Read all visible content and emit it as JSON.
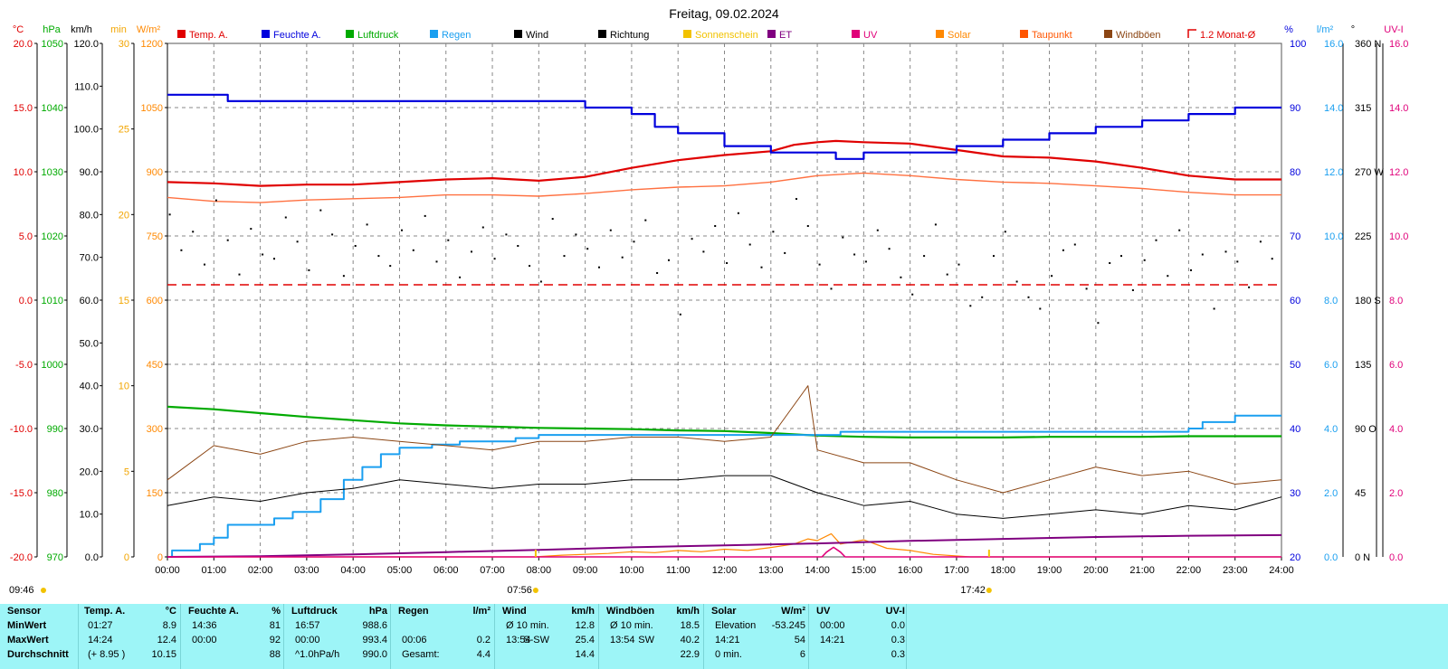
{
  "title": "Freitag, 09.02.2024",
  "legend": [
    {
      "label": "Temp. A.",
      "color": "#e00000"
    },
    {
      "label": "Feuchte A.",
      "color": "#0000dd"
    },
    {
      "label": "Luftdruck",
      "color": "#00aa00"
    },
    {
      "label": "Regen",
      "color": "#1a9ff0"
    },
    {
      "label": "Wind",
      "color": "#000000"
    },
    {
      "label": "Richtung",
      "color": "#000000"
    },
    {
      "label": "Sonnenschein",
      "color": "#f2c200"
    },
    {
      "label": "ET",
      "color": "#800080"
    },
    {
      "label": "UV",
      "color": "#e0007a"
    },
    {
      "label": "Solar",
      "color": "#ff8800"
    },
    {
      "label": "Taupunkt",
      "color": "#ff5500"
    },
    {
      "label": "Windböen",
      "color": "#8b4513"
    },
    {
      "label": "1.2 Monat-Ø",
      "color": "#e00000",
      "outline": true
    }
  ],
  "axes_left": [
    {
      "unit": "°C",
      "color": "#e00000",
      "ticks": [
        "20.0",
        "15.0",
        "10.0",
        "5.0",
        "0.0",
        "-5.0",
        "-10.0",
        "-15.0",
        "-20.0"
      ]
    },
    {
      "unit": "hPa",
      "color": "#00aa00",
      "ticks": [
        "1050",
        "1040",
        "1030",
        "1020",
        "1010",
        "1000",
        "990",
        "980",
        "970"
      ]
    },
    {
      "unit": "km/h",
      "color": "#000000",
      "ticks": [
        "120.0",
        "110.0",
        "100.0",
        "90.0",
        "80.0",
        "70.0",
        "60.0",
        "50.0",
        "40.0",
        "30.0",
        "20.0",
        "10.0",
        "0.0"
      ]
    },
    {
      "unit": "min",
      "color": "#f2a500",
      "ticks": [
        "30",
        "25",
        "20",
        "15",
        "10",
        "5",
        "0"
      ]
    },
    {
      "unit": "W/m²",
      "color": "#ff8800",
      "ticks": [
        "1200",
        "1050",
        "900",
        "750",
        "600",
        "450",
        "300",
        "150",
        "0"
      ]
    }
  ],
  "axes_right": [
    {
      "unit": "%",
      "color": "#0000dd",
      "ticks": [
        "100",
        "90",
        "80",
        "70",
        "60",
        "50",
        "40",
        "30",
        "20"
      ]
    },
    {
      "unit": "l/m²",
      "color": "#1a9ff0",
      "ticks": [
        "16.0",
        "14.0",
        "12.0",
        "10.0",
        "8.0",
        "6.0",
        "4.0",
        "2.0",
        "0.0"
      ]
    },
    {
      "unit": "°",
      "color": "#000000",
      "ticks": [
        "360 N",
        "315",
        "270 W",
        "225",
        "180 S",
        "135",
        "90 O",
        "45",
        "0 N"
      ]
    },
    {
      "unit": "UV-I",
      "color": "#e0007a",
      "ticks": [
        "16.0",
        "14.0",
        "12.0",
        "10.0",
        "8.0",
        "6.0",
        "4.0",
        "2.0",
        "0.0"
      ]
    }
  ],
  "x_ticks": [
    "00:00",
    "01:00",
    "02:00",
    "03:00",
    "04:00",
    "05:00",
    "06:00",
    "07:00",
    "08:00",
    "09:00",
    "10:00",
    "11:00",
    "12:00",
    "13:00",
    "14:00",
    "15:00",
    "16:00",
    "17:00",
    "18:00",
    "19:00",
    "20:00",
    "21:00",
    "22:00",
    "23:00",
    "24:00"
  ],
  "markers": {
    "sun_time": "09:46",
    "sunrise": "07:56",
    "sunset": "17:42"
  },
  "chart_data": {
    "type": "line",
    "x_unit": "hours",
    "xlim": [
      0,
      24
    ],
    "series": [
      {
        "name": "Temp. A.",
        "unit": "°C",
        "ylim": [
          -20,
          20
        ],
        "color": "#e00000",
        "x": [
          0,
          1,
          2,
          3,
          4,
          5,
          6,
          7,
          8,
          9,
          10,
          11,
          12,
          13,
          13.5,
          14,
          14.4,
          15,
          16,
          17,
          18,
          19,
          20,
          21,
          22,
          23,
          24
        ],
        "values": [
          9.2,
          9.1,
          8.9,
          9.0,
          9.0,
          9.2,
          9.4,
          9.5,
          9.3,
          9.6,
          10.3,
          10.9,
          11.3,
          11.6,
          12.1,
          12.3,
          12.4,
          12.3,
          12.2,
          11.7,
          11.2,
          11.1,
          10.8,
          10.3,
          9.7,
          9.4,
          9.4
        ]
      },
      {
        "name": "Feuchte A.",
        "unit": "%",
        "ylim": [
          20,
          100
        ],
        "color": "#0000dd",
        "x": [
          0,
          1.2,
          1.3,
          5.5,
          6,
          9,
          10,
          10.5,
          11,
          12,
          13,
          13.5,
          14,
          14.4,
          15,
          16,
          17,
          18,
          19,
          20,
          21,
          22,
          23,
          24
        ],
        "values": [
          92,
          92,
          91,
          91,
          91,
          90,
          89,
          87,
          86,
          84,
          83,
          83,
          83,
          82,
          83,
          83,
          84,
          85,
          86,
          87,
          88,
          89,
          90,
          90
        ]
      },
      {
        "name": "Luftdruck",
        "unit": "hPa",
        "ylim": [
          970,
          1050
        ],
        "color": "#00aa00",
        "x": [
          0,
          1,
          2,
          3,
          4,
          5,
          6,
          7,
          8,
          9,
          10,
          11,
          12,
          13,
          14,
          15,
          16,
          17,
          18,
          19,
          20,
          21,
          22,
          23,
          24
        ],
        "values": [
          993.4,
          993.0,
          992.4,
          991.8,
          991.3,
          990.8,
          990.5,
          990.3,
          990.1,
          990.0,
          989.9,
          989.7,
          989.6,
          989.3,
          988.9,
          988.7,
          988.6,
          988.6,
          988.6,
          988.7,
          988.7,
          988.7,
          988.8,
          988.8,
          988.8
        ]
      },
      {
        "name": "Regen",
        "unit": "l/m²",
        "ylim": [
          0,
          16
        ],
        "color": "#1a9ff0",
        "x": [
          0,
          0.1,
          0.7,
          1.0,
          1.3,
          2.3,
          2.7,
          3.3,
          3.8,
          4.2,
          4.6,
          5.0,
          5.3,
          5.7,
          6.3,
          7.3,
          7.5,
          8.0,
          9.0,
          10.0,
          13.0,
          14.0,
          14.5,
          15.0,
          20.0,
          21.5,
          22.0,
          22.3,
          23.0,
          24.0
        ],
        "values": [
          0,
          0.2,
          0.4,
          0.6,
          1.0,
          1.2,
          1.4,
          1.8,
          2.4,
          2.8,
          3.2,
          3.4,
          3.4,
          3.5,
          3.6,
          3.6,
          3.7,
          3.8,
          3.8,
          3.8,
          3.8,
          3.8,
          3.9,
          3.9,
          3.9,
          3.9,
          4.0,
          4.2,
          4.4,
          4.4
        ]
      },
      {
        "name": "Wind",
        "unit": "km/h",
        "ylim": [
          0,
          120
        ],
        "color": "#000000",
        "x": [
          0,
          1,
          2,
          3,
          4,
          5,
          6,
          7,
          8,
          9,
          10,
          11,
          12,
          13,
          14,
          15,
          16,
          17,
          18,
          19,
          20,
          21,
          22,
          23,
          24
        ],
        "values": [
          12,
          14,
          13,
          15,
          16,
          18,
          17,
          16,
          17,
          17,
          18,
          18,
          19,
          19,
          15,
          12,
          13,
          10,
          9,
          10,
          11,
          10,
          12,
          11,
          14
        ]
      },
      {
        "name": "Windböen",
        "unit": "km/h",
        "ylim": [
          0,
          120
        ],
        "color": "#8b4513",
        "x": [
          0,
          1,
          2,
          3,
          4,
          5,
          6,
          7,
          8,
          9,
          10,
          11,
          12,
          13,
          13.8,
          14,
          15,
          16,
          17,
          18,
          19,
          20,
          21,
          22,
          23,
          24
        ],
        "values": [
          18,
          26,
          24,
          27,
          28,
          27,
          26,
          25,
          27,
          27,
          28,
          28,
          27,
          28,
          40,
          25,
          22,
          22,
          18,
          15,
          18,
          21,
          19,
          20,
          17,
          18
        ]
      },
      {
        "name": "Taupunkt",
        "unit": "°C",
        "ylim": [
          -20,
          20
        ],
        "color": "#ff7040",
        "x": [
          0,
          1,
          2,
          3,
          4,
          5,
          6,
          7,
          8,
          9,
          10,
          11,
          12,
          13,
          14,
          15,
          16,
          17,
          18,
          19,
          20,
          21,
          22,
          23,
          24
        ],
        "values": [
          8.0,
          7.7,
          7.6,
          7.8,
          7.9,
          8.0,
          8.2,
          8.2,
          8.1,
          8.3,
          8.6,
          8.8,
          8.9,
          9.2,
          9.7,
          9.9,
          9.7,
          9.4,
          9.2,
          9.1,
          8.9,
          8.7,
          8.4,
          8.2,
          8.2
        ]
      },
      {
        "name": "Solar",
        "unit": "W/m²",
        "ylim": [
          0,
          1200
        ],
        "color": "#ff8800",
        "x": [
          0,
          7.9,
          8.5,
          9.0,
          9.5,
          10,
          10.5,
          11,
          11.5,
          12,
          12.5,
          13,
          13.5,
          13.8,
          14.0,
          14.3,
          14.5,
          15,
          15.5,
          16,
          16.5,
          17.3,
          24
        ],
        "values": [
          0,
          0,
          4,
          6,
          8,
          12,
          10,
          15,
          12,
          18,
          15,
          22,
          30,
          42,
          38,
          54,
          30,
          40,
          20,
          15,
          6,
          0,
          0
        ]
      },
      {
        "name": "ET",
        "unit": "l/m²",
        "ylim": [
          0,
          16
        ],
        "color": "#800080",
        "x": [
          0,
          2,
          4,
          6,
          8,
          10,
          12,
          14,
          16,
          18,
          20,
          22,
          24
        ],
        "values": [
          0,
          0.02,
          0.08,
          0.15,
          0.22,
          0.3,
          0.36,
          0.42,
          0.5,
          0.56,
          0.62,
          0.66,
          0.68
        ]
      },
      {
        "name": "UV",
        "unit": "UV-I",
        "ylim": [
          0,
          16
        ],
        "color": "#e0007a",
        "x": [
          0,
          14.1,
          14.2,
          14.35,
          14.5,
          14.6,
          24
        ],
        "values": [
          0,
          0,
          0.15,
          0.3,
          0.15,
          0,
          0
        ]
      },
      {
        "name": "1.2 Monat-Ø",
        "unit": "°C",
        "ylim": [
          -20,
          20
        ],
        "color": "#e00000",
        "x": [
          0,
          24
        ],
        "values": [
          1.2,
          1.2
        ]
      }
    ],
    "direction_points": {
      "name": "Richtung",
      "unit": "°",
      "ylim": [
        0,
        360
      ],
      "x": [
        0.05,
        0.3,
        0.55,
        0.8,
        1.05,
        1.3,
        1.55,
        1.8,
        2.05,
        2.3,
        2.55,
        2.8,
        3.05,
        3.3,
        3.55,
        3.8,
        4.05,
        4.3,
        4.55,
        4.8,
        5.05,
        5.3,
        5.55,
        5.8,
        6.05,
        6.3,
        6.55,
        6.8,
        7.05,
        7.3,
        7.55,
        7.8,
        8.05,
        8.3,
        8.55,
        8.8,
        9.05,
        9.3,
        9.55,
        9.8,
        10.05,
        10.3,
        10.55,
        10.8,
        11.05,
        11.3,
        11.55,
        11.8,
        12.05,
        12.3,
        12.55,
        12.8,
        13.05,
        13.3,
        13.55,
        13.8,
        14.05,
        14.3,
        14.55,
        14.8,
        15.05,
        15.3,
        15.55,
        15.8,
        16.05,
        16.3,
        16.55,
        16.8,
        17.05,
        17.3,
        17.55,
        17.8,
        18.05,
        18.3,
        18.55,
        18.8,
        19.05,
        19.3,
        19.55,
        19.8,
        20.05,
        20.3,
        20.55,
        20.8,
        21.05,
        21.3,
        21.55,
        21.8,
        22.05,
        22.3,
        22.55,
        22.8,
        23.05,
        23.3,
        23.55,
        23.8
      ],
      "values": [
        240,
        215,
        228,
        205,
        250,
        222,
        198,
        230,
        212,
        209,
        238,
        221,
        201,
        243,
        226,
        197,
        218,
        233,
        211,
        204,
        229,
        215,
        239,
        207,
        222,
        196,
        214,
        231,
        209,
        226,
        218,
        204,
        193,
        237,
        211,
        226,
        216,
        203,
        229,
        210,
        221,
        236,
        199,
        208,
        170,
        223,
        214,
        232,
        206,
        241,
        219,
        203,
        228,
        213,
        251,
        232,
        205,
        188,
        224,
        212,
        207,
        229,
        216,
        196,
        184,
        211,
        233,
        198,
        205,
        176,
        182,
        211,
        228,
        193,
        182,
        174,
        197,
        215,
        219,
        188,
        164,
        206,
        211,
        187,
        208,
        222,
        197,
        229,
        201,
        212,
        174,
        214,
        207,
        189,
        221,
        209
      ]
    }
  },
  "stats": {
    "headers": [
      {
        "name": "Sensor"
      },
      {
        "name": "Temp. A.",
        "unit": "°C"
      },
      {
        "name": "Feuchte A.",
        "unit": "%"
      },
      {
        "name": "Luftdruck",
        "unit": "hPa"
      },
      {
        "name": "Regen",
        "unit": "l/m²"
      },
      {
        "name": "Wind",
        "unit": "km/h"
      },
      {
        "name": "Windböen",
        "unit": "km/h"
      },
      {
        "name": "Solar",
        "unit": "W/m²"
      },
      {
        "name": "UV",
        "unit": "UV-I"
      }
    ],
    "rows": [
      {
        "label": "MinWert",
        "temp": [
          "01:27",
          "8.9"
        ],
        "hum": [
          "14:36",
          "81"
        ],
        "press": [
          "16:57",
          "988.6"
        ],
        "rain": [
          "",
          ""
        ],
        "wind": [
          "Ø 10 min.",
          "",
          "12.8"
        ],
        "gust": [
          "Ø 10 min.",
          "",
          "18.5"
        ],
        "solar": [
          "Elevation",
          "-53.245"
        ],
        "uv": [
          "00:00",
          "0.0"
        ]
      },
      {
        "label": "MaxWert",
        "temp": [
          "14:24",
          "12.4"
        ],
        "hum": [
          "00:00",
          "92"
        ],
        "press": [
          "00:00",
          "993.4"
        ],
        "rain": [
          "00:06",
          "0.2"
        ],
        "wind": [
          "13:54",
          "S-SW",
          "25.4"
        ],
        "gust": [
          "13:54",
          "SW",
          "40.2"
        ],
        "solar": [
          "14:21",
          "54"
        ],
        "uv": [
          "14:21",
          "0.3"
        ]
      },
      {
        "label": "Durchschnitt",
        "temp": [
          "(+ 8.95 )",
          "10.15"
        ],
        "hum": [
          "",
          "88"
        ],
        "press": [
          "^1.0hPa/h",
          "990.0"
        ],
        "rain": [
          "Gesamt:",
          "4.4"
        ],
        "wind": [
          "",
          "",
          "14.4"
        ],
        "gust": [
          "",
          "",
          "22.9"
        ],
        "solar": [
          "0 min.",
          "6"
        ],
        "uv": [
          "",
          "0.3"
        ]
      }
    ]
  }
}
